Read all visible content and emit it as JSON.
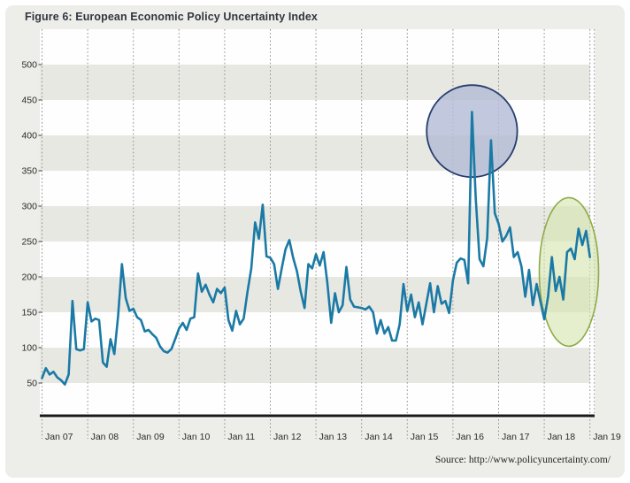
{
  "header": {
    "title": "Figure 6: European Economic Policy Uncertainty Index"
  },
  "footer": {
    "source": "Source: http://www.policyuncertainty.com/"
  },
  "chart_data": {
    "type": "line",
    "title": "Figure 6: European Economic Policy Uncertainty Index",
    "xlabel": "",
    "ylabel": "",
    "x_tick_labels": [
      "Jan 07",
      "Jan 08",
      "Jan 09",
      "Jan 10",
      "Jan 11",
      "Jan 12",
      "Jan 13",
      "Jan 14",
      "Jan 15",
      "Jan 16",
      "Jan 17",
      "Jan 18",
      "Jan 19"
    ],
    "y_ticks": [
      50,
      100,
      150,
      200,
      250,
      300,
      350,
      400,
      450,
      500
    ],
    "ylim": [
      0,
      550
    ],
    "grid": "vertical dashed lines at each January; horizontal alternating shaded bands every 50 units",
    "legend": "none",
    "band_colors": {
      "gray": "#e8e8e3",
      "white": "#fefefe"
    },
    "axis_color": "#1a1a1a",
    "series": [
      {
        "name": "European Economic Policy Uncertainty Index",
        "color": "#1a7aa5",
        "start": "Jan 2007",
        "frequency": "monthly",
        "values": [
          57,
          71,
          62,
          66,
          58,
          54,
          48,
          62,
          166,
          98,
          96,
          98,
          164,
          137,
          141,
          139,
          79,
          73,
          112,
          91,
          145,
          218,
          170,
          152,
          155,
          143,
          139,
          123,
          125,
          119,
          114,
          102,
          95,
          93,
          98,
          112,
          127,
          135,
          125,
          141,
          143,
          205,
          179,
          189,
          175,
          164,
          183,
          177,
          185,
          139,
          124,
          152,
          133,
          141,
          179,
          212,
          277,
          254,
          302,
          229,
          227,
          218,
          183,
          212,
          239,
          252,
          227,
          208,
          179,
          156,
          218,
          212,
          232,
          216,
          235,
          191,
          135,
          177,
          150,
          160,
          214,
          168,
          158,
          157,
          156,
          154,
          158,
          150,
          120,
          139,
          120,
          129,
          110,
          110,
          133,
          190,
          152,
          175,
          143,
          164,
          133,
          162,
          191,
          150,
          187,
          162,
          166,
          149,
          195,
          220,
          226,
          224,
          191,
          433,
          310,
          225,
          215,
          255,
          393,
          290,
          275,
          250,
          258,
          270,
          228,
          235,
          215,
          172,
          210,
          160,
          190,
          165,
          140,
          172,
          228,
          180,
          200,
          168,
          235,
          240,
          225,
          268,
          245,
          265,
          228
        ]
      }
    ],
    "annotations": [
      {
        "shape": "ellipse",
        "name": "highlight-2016-uncertainty-spikes",
        "fill": "#b5bcd5",
        "fill_opacity": 0.82,
        "stroke": "#253d6e",
        "stroke_width": 1.8,
        "x_center_month_index": 113,
        "months_radius": 11.9,
        "y_center_value": 406,
        "value_radius": 65
      },
      {
        "shape": "ellipse",
        "name": "highlight-2018-period",
        "fill": "#d3e5ad",
        "fill_opacity": 0.6,
        "stroke": "#8fab47",
        "stroke_width": 1.6,
        "x_center_month_index": 138.5,
        "months_radius": 7.8,
        "y_center_value": 207,
        "value_radius": 105
      }
    ],
    "source": "Source: http://www.policyuncertainty.com/"
  }
}
